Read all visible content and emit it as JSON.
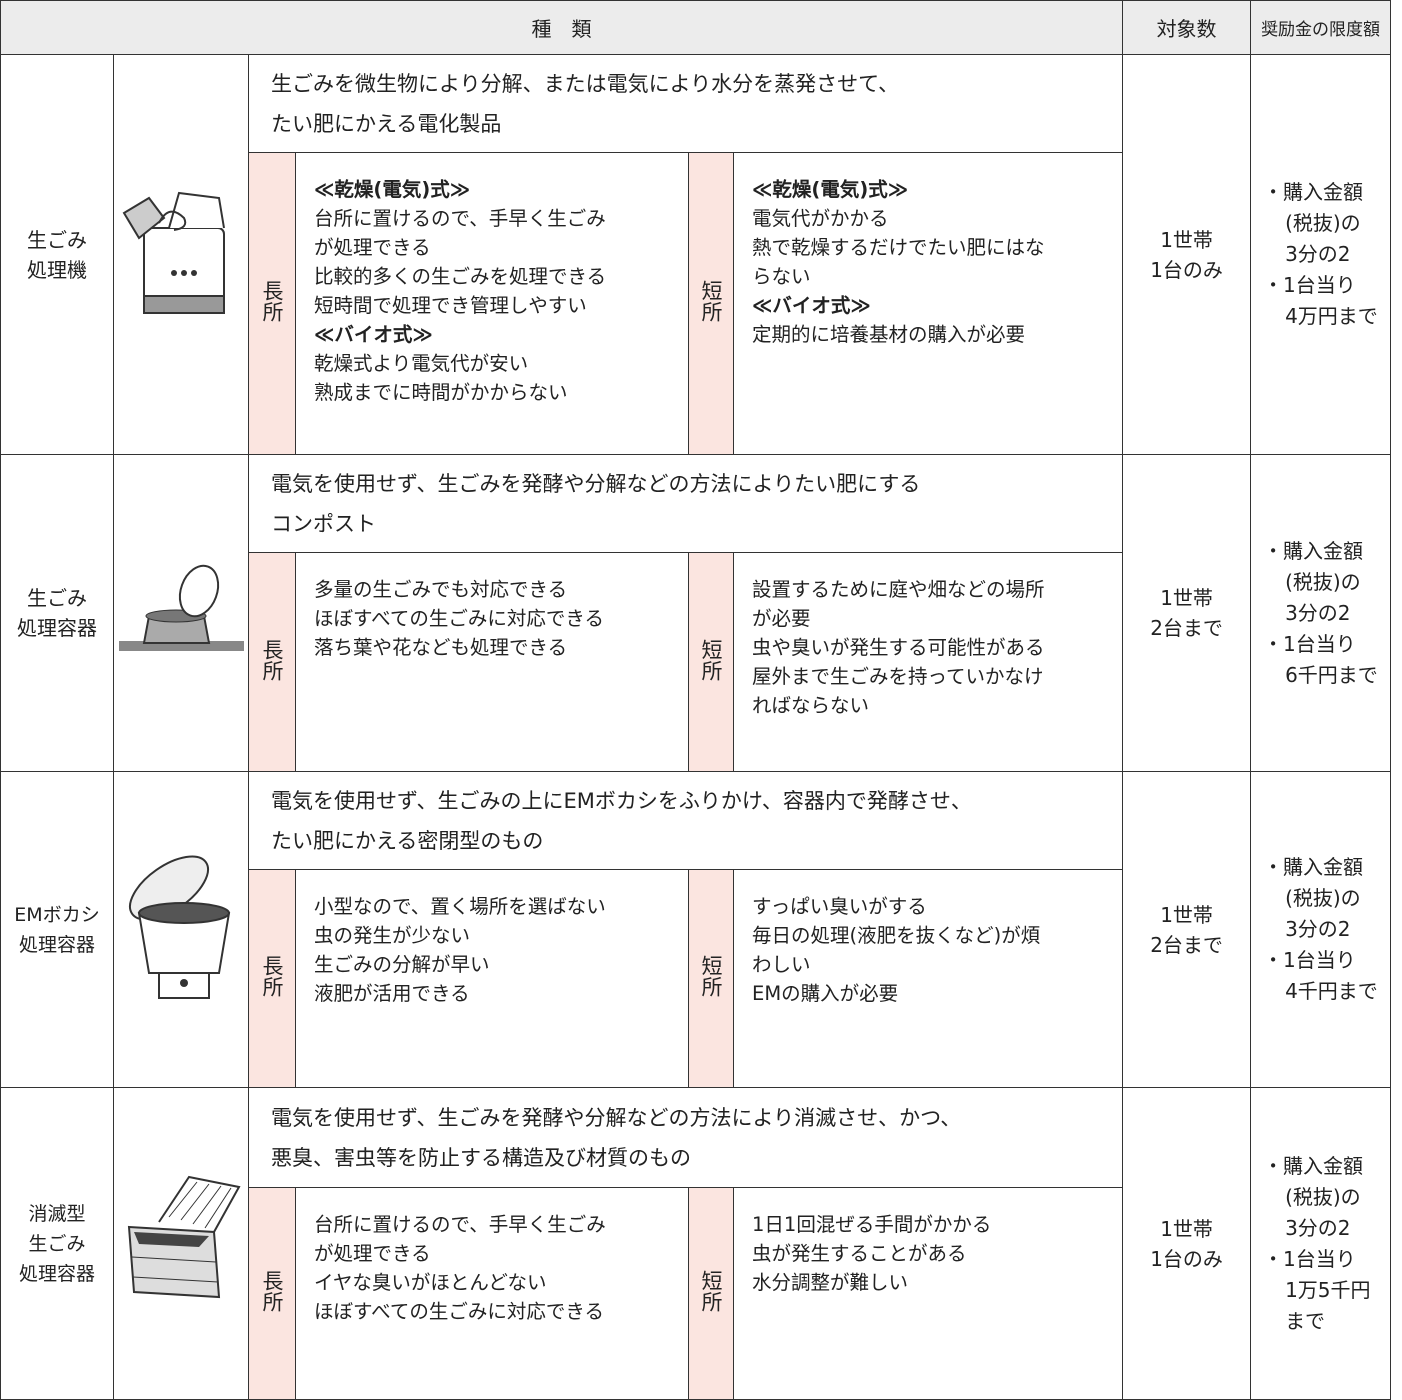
{
  "header": {
    "type": "種　類",
    "count": "対象数",
    "limit": "奨励金の限度額"
  },
  "rows": [
    {
      "name": [
        "生ごみ",
        "処理機"
      ],
      "description": [
        "生ごみを微生物により分解、または電気により水分を蒸発させて、",
        "たい肥にかえる電化製品"
      ],
      "pros_label": "長所",
      "pros": [
        {
          "heading": "≪乾燥(電気)式≫",
          "lines": [
            "台所に置けるので、手早く生ごみ",
            "が処理できる",
            "比較的多くの生ごみを処理できる",
            "短時間で処理でき管理しやすい"
          ]
        },
        {
          "heading": "≪バイオ式≫",
          "lines": [
            "乾燥式より電気代が安い",
            "熟成までに時間がかからない"
          ]
        }
      ],
      "cons_label": "短所",
      "cons": [
        {
          "heading": "≪乾燥(電気)式≫",
          "lines": [
            "電気代がかかる",
            "熱で乾燥するだけでたい肥にはな",
            "らない"
          ]
        },
        {
          "heading": "≪バイオ式≫",
          "lines": [
            "定期的に培養基材の購入が必要"
          ]
        }
      ],
      "count": [
        "1世帯",
        "1台のみ"
      ],
      "limit": [
        "・購入金額",
        "(税抜)の",
        "3分の2",
        "・1台当り",
        "4万円まで"
      ]
    },
    {
      "name": [
        "生ごみ",
        "処理容器"
      ],
      "description": [
        "電気を使用せず、生ごみを発酵や分解などの方法によりたい肥にする",
        "コンポスト"
      ],
      "pros_label": "長所",
      "pros": [
        {
          "lines": [
            "多量の生ごみでも対応できる",
            "ほぼすべての生ごみに対応できる",
            "落ち葉や花なども処理できる"
          ]
        }
      ],
      "cons_label": "短所",
      "cons": [
        {
          "lines": [
            "設置するために庭や畑などの場所",
            "が必要",
            "虫や臭いが発生する可能性がある",
            "屋外まで生ごみを持っていかなけ",
            "ればならない"
          ]
        }
      ],
      "count": [
        "1世帯",
        "2台まで"
      ],
      "limit": [
        "・購入金額",
        "(税抜)の",
        "3分の2",
        "・1台当り",
        "6千円まで"
      ]
    },
    {
      "name": [
        "EMボカシ",
        "処理容器"
      ],
      "description": [
        "電気を使用せず、生ごみの上にEMボカシをふりかけ、容器内で発酵させ、",
        "たい肥にかえる密閉型のもの"
      ],
      "pros_label": "長所",
      "pros": [
        {
          "lines": [
            "小型なので、置く場所を選ばない",
            "虫の発生が少ない",
            "生ごみの分解が早い",
            "液肥が活用できる"
          ]
        }
      ],
      "cons_label": "短所",
      "cons": [
        {
          "lines": [
            "すっぱい臭いがする",
            "毎日の処理(液肥を抜くなど)が煩",
            "わしい",
            "EMの購入が必要"
          ]
        }
      ],
      "count": [
        "1世帯",
        "2台まで"
      ],
      "limit": [
        "・購入金額",
        "(税抜)の",
        "3分の2",
        "・1台当り",
        "4千円まで"
      ]
    },
    {
      "name": [
        "消滅型",
        "生ごみ",
        "処理容器"
      ],
      "description": [
        "電気を使用せず、生ごみを発酵や分解などの方法により消滅させ、かつ、",
        "悪臭、害虫等を防止する構造及び材質のもの"
      ],
      "pros_label": "長所",
      "pros": [
        {
          "lines": [
            "台所に置けるので、手早く生ごみ",
            "が処理できる",
            "イヤな臭いがほとんどない",
            "ほぼすべての生ごみに対応できる"
          ]
        }
      ],
      "cons_label": "短所",
      "cons": [
        {
          "lines": [
            "1日1回混ぜる手間がかかる",
            "虫が発生することがある",
            "水分調整が難しい"
          ]
        }
      ],
      "count": [
        "1世帯",
        "1台のみ"
      ],
      "limit": [
        "・購入金額",
        "(税抜)の",
        "3分の2",
        "・1台当り",
        "1万5千円",
        "まで"
      ]
    }
  ]
}
